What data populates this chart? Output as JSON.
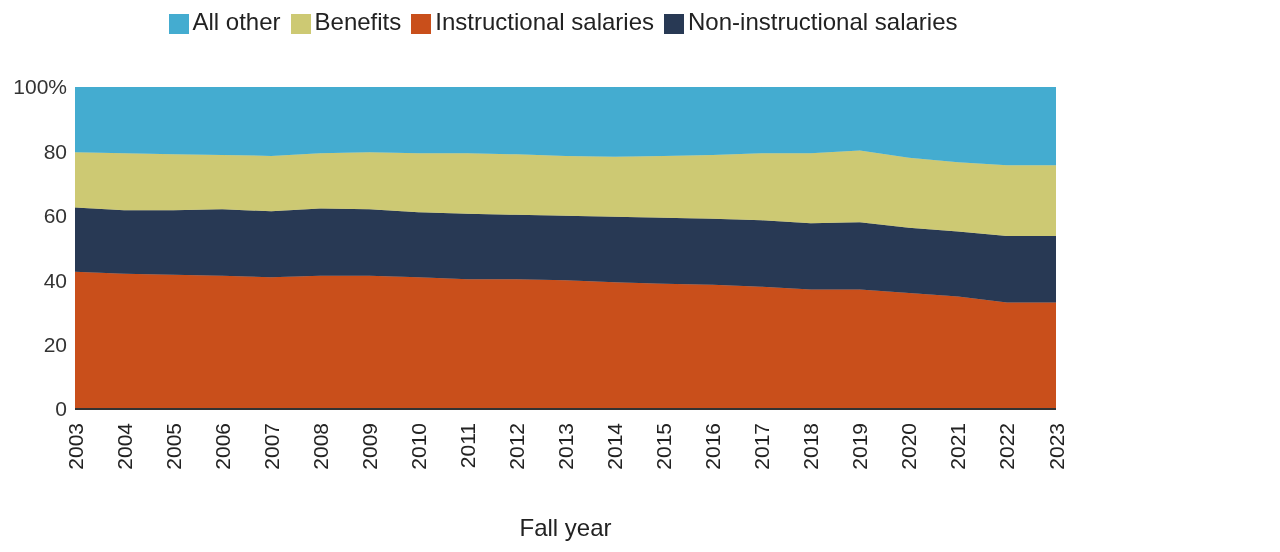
{
  "chart_data": {
    "type": "area",
    "stacked": true,
    "xlabel": "Fall year",
    "categories": [
      "2003",
      "2004",
      "2005",
      "2006",
      "2007",
      "2008",
      "2009",
      "2010",
      "2011",
      "2012",
      "2013",
      "2014",
      "2015",
      "2016",
      "2017",
      "2018",
      "2019",
      "2020",
      "2021",
      "2022",
      "2023"
    ],
    "series": [
      {
        "name": "Instructional salaries",
        "color": "#c94f1b",
        "values": [
          42.6,
          42.0,
          41.7,
          41.4,
          40.9,
          41.4,
          41.4,
          40.9,
          40.3,
          40.3,
          40.0,
          39.4,
          38.9,
          38.6,
          38.0,
          37.1,
          37.1,
          36.0,
          34.9,
          33.1,
          33.1
        ]
      },
      {
        "name": "Non-instructional salaries",
        "color": "#283954",
        "values": [
          20.0,
          19.7,
          20.0,
          20.6,
          20.5,
          20.9,
          20.6,
          20.2,
          20.3,
          20.0,
          20.0,
          20.3,
          20.5,
          20.5,
          20.6,
          20.6,
          20.9,
          20.3,
          20.2,
          20.6,
          20.6
        ]
      },
      {
        "name": "Benefits",
        "color": "#cdc973",
        "values": [
          17.1,
          17.7,
          17.4,
          16.9,
          17.2,
          17.1,
          17.7,
          18.3,
          18.8,
          18.8,
          18.6,
          18.6,
          19.2,
          19.8,
          20.8,
          21.7,
          22.3,
          21.7,
          21.5,
          22.0,
          22.0
        ]
      },
      {
        "name": "All other",
        "color": "#44acd0",
        "values": [
          20.3,
          20.6,
          20.9,
          21.1,
          21.4,
          20.6,
          20.3,
          20.6,
          20.6,
          20.9,
          21.4,
          21.7,
          21.4,
          21.1,
          20.6,
          20.6,
          19.7,
          22.0,
          23.4,
          24.3,
          24.3
        ]
      }
    ],
    "ylim": [
      0,
      100
    ],
    "yticks": [
      0,
      20,
      40,
      60,
      80,
      {
        "value": 100,
        "label": "100%"
      }
    ],
    "grid": false,
    "legend": "top"
  }
}
